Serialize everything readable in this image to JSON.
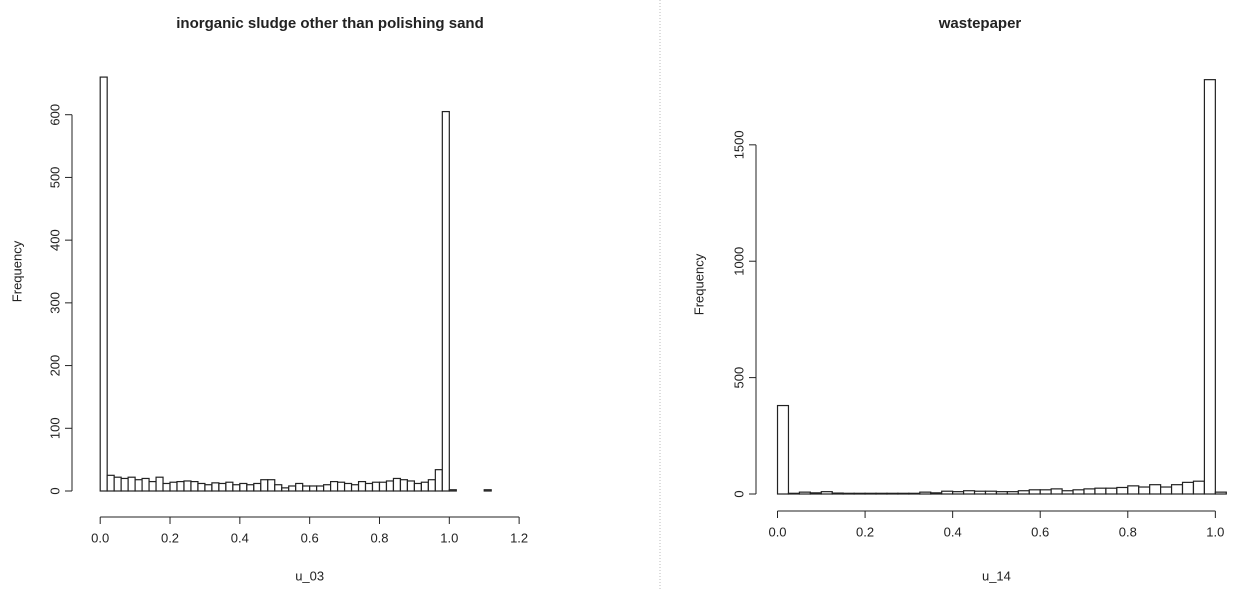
{
  "chart_data": [
    {
      "type": "histogram",
      "title": "inorganic sludge other than polishing sand",
      "x_label": "u_03",
      "y_label": "Frequency",
      "bins": [
        0,
        0.02,
        0.04,
        0.06,
        0.08,
        0.1,
        0.12,
        0.14,
        0.16,
        0.18,
        0.2,
        0.22,
        0.24,
        0.26,
        0.28,
        0.3,
        0.32,
        0.34,
        0.36,
        0.38,
        0.4,
        0.42,
        0.44,
        0.46,
        0.48,
        0.5,
        0.52,
        0.54,
        0.56,
        0.58,
        0.6,
        0.62,
        0.64,
        0.66,
        0.68,
        0.7,
        0.72,
        0.74,
        0.76,
        0.78,
        0.8,
        0.82,
        0.84,
        0.86,
        0.88,
        0.9,
        0.92,
        0.94,
        0.96,
        0.98,
        1,
        1.02,
        1.04,
        1.06,
        1.08,
        1.1,
        1.12,
        1.14,
        1.16,
        1.18,
        1.2,
        1.22,
        1.24,
        1.26,
        1.28,
        1.3,
        1.32,
        1.34
      ],
      "values": [
        660,
        25,
        22,
        20,
        22,
        18,
        20,
        15,
        22,
        12,
        14,
        15,
        16,
        15,
        12,
        10,
        13,
        12,
        14,
        10,
        12,
        10,
        12,
        18,
        18,
        10,
        5,
        8,
        12,
        8,
        8,
        8,
        10,
        15,
        14,
        12,
        10,
        15,
        12,
        14,
        14,
        16,
        20,
        18,
        16,
        12,
        14,
        18,
        34,
        605,
        2,
        0,
        0,
        0,
        0,
        2,
        0,
        0,
        0,
        0,
        0,
        0,
        0,
        0,
        0,
        0,
        0
      ],
      "color": "#ffffff",
      "xlim": [
        -0.055,
        1.34
      ],
      "ylim": [
        0,
        700
      ],
      "xticks": [
        {
          "value": 0,
          "label": "0.0"
        },
        {
          "value": 0.2,
          "label": "0.2"
        },
        {
          "value": 0.4,
          "label": "0.4"
        },
        {
          "value": 0.6,
          "label": "0.6"
        },
        {
          "value": 0.8,
          "label": "0.8"
        },
        {
          "value": 1,
          "label": "1.0"
        },
        {
          "value": 1.2,
          "label": "1.2"
        }
      ],
      "yticks": [
        0,
        100,
        200,
        300,
        400,
        500,
        600
      ]
    },
    {
      "type": "histogram",
      "title": "wastepaper",
      "x_label": "u_14",
      "y_label": "Frequency",
      "bins": [
        0,
        0.025,
        0.05,
        0.075,
        0.1,
        0.125,
        0.15,
        0.175,
        0.2,
        0.225,
        0.25,
        0.275,
        0.3,
        0.325,
        0.35,
        0.375,
        0.4,
        0.425,
        0.45,
        0.475,
        0.5,
        0.525,
        0.55,
        0.575,
        0.6,
        0.625,
        0.65,
        0.675,
        0.7,
        0.725,
        0.75,
        0.775,
        0.8,
        0.825,
        0.85,
        0.875,
        0.9,
        0.925,
        0.95,
        0.975,
        1,
        1.025,
        1.05
      ],
      "values": [
        380,
        3,
        8,
        5,
        10,
        4,
        3,
        3,
        3,
        3,
        3,
        3,
        3,
        8,
        5,
        12,
        10,
        14,
        12,
        12,
        10,
        10,
        14,
        18,
        18,
        22,
        14,
        18,
        22,
        25,
        25,
        28,
        35,
        30,
        40,
        30,
        40,
        50,
        55,
        1780,
        8,
        0
      ],
      "color": "#ffffff",
      "xlim": [
        -0.04,
        1.07
      ],
      "ylim": [
        0,
        1800
      ],
      "xticks": [
        {
          "value": 0,
          "label": "0.0"
        },
        {
          "value": 0.2,
          "label": "0.2"
        },
        {
          "value": 0.4,
          "label": "0.4"
        },
        {
          "value": 0.6,
          "label": "0.6"
        },
        {
          "value": 0.8,
          "label": "0.8"
        },
        {
          "value": 1,
          "label": "1.0"
        }
      ],
      "yticks": [
        0,
        500,
        1000,
        1500
      ]
    }
  ]
}
